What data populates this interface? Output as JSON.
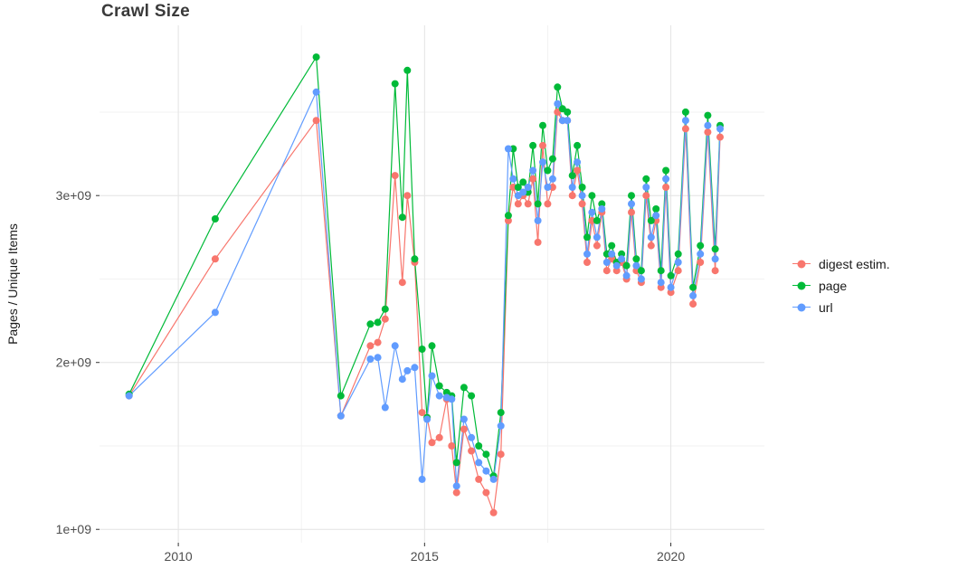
{
  "chart_data": {
    "type": "line",
    "title": "Crawl Size",
    "xlabel": "",
    "ylabel": "Pages / Unique Items",
    "y_units": "items (1 unit = 1e+09)",
    "xlim": [
      2008.4,
      2021.9
    ],
    "ylim": [
      0.92,
      4.02
    ],
    "grid": "on",
    "legend_position": "right",
    "x_ticks": [
      {
        "value": 2010,
        "label": "2010"
      },
      {
        "value": 2015,
        "label": "2015"
      },
      {
        "value": 2020,
        "label": "2020"
      }
    ],
    "x_minor_ticks": [
      2012.5,
      2017.5
    ],
    "y_ticks": [
      {
        "value": 1,
        "label": "1e+09"
      },
      {
        "value": 2,
        "label": "2e+09"
      },
      {
        "value": 3,
        "label": "3e+09"
      }
    ],
    "y_minor_ticks": [
      1.5,
      2.5,
      3.5
    ],
    "x": [
      2009.0,
      2010.75,
      2012.8,
      2013.3,
      2013.9,
      2014.05,
      2014.2,
      2014.4,
      2014.55,
      2014.65,
      2014.8,
      2014.95,
      2015.05,
      2015.15,
      2015.3,
      2015.45,
      2015.55,
      2015.65,
      2015.8,
      2015.95,
      2016.1,
      2016.25,
      2016.4,
      2016.55,
      2016.7,
      2016.8,
      2016.9,
      2017.0,
      2017.1,
      2017.2,
      2017.3,
      2017.4,
      2017.5,
      2017.6,
      2017.7,
      2017.8,
      2017.9,
      2018.0,
      2018.1,
      2018.2,
      2018.3,
      2018.4,
      2018.5,
      2018.6,
      2018.7,
      2018.8,
      2018.9,
      2019.0,
      2019.1,
      2019.2,
      2019.3,
      2019.4,
      2019.5,
      2019.6,
      2019.7,
      2019.8,
      2019.9,
      2020.0,
      2020.15,
      2020.3,
      2020.45,
      2020.6,
      2020.75,
      2020.9,
      2021.0
    ],
    "series": [
      {
        "name": "digest estim.",
        "color": "#F8766D",
        "values": [
          1.8,
          2.62,
          3.45,
          1.68,
          2.1,
          2.12,
          2.26,
          3.12,
          2.48,
          3.0,
          2.6,
          1.7,
          1.67,
          1.52,
          1.55,
          1.78,
          1.5,
          1.22,
          1.6,
          1.47,
          1.3,
          1.22,
          1.1,
          1.45,
          2.85,
          3.05,
          2.95,
          3.0,
          2.95,
          3.1,
          2.72,
          3.3,
          2.95,
          3.05,
          3.5,
          3.45,
          3.45,
          3.0,
          3.15,
          2.95,
          2.6,
          2.85,
          2.7,
          2.9,
          2.55,
          2.62,
          2.55,
          2.6,
          2.5,
          2.9,
          2.55,
          2.48,
          3.0,
          2.7,
          2.85,
          2.45,
          3.05,
          2.42,
          2.55,
          3.4,
          2.35,
          2.6,
          3.38,
          2.55,
          3.35
        ]
      },
      {
        "name": "page",
        "color": "#00BA38",
        "values": [
          1.81,
          2.86,
          3.83,
          1.8,
          2.23,
          2.24,
          2.32,
          3.67,
          2.87,
          3.75,
          2.62,
          2.08,
          1.67,
          2.1,
          1.86,
          1.82,
          1.8,
          1.4,
          1.85,
          1.8,
          1.5,
          1.45,
          1.32,
          1.7,
          2.88,
          3.28,
          3.05,
          3.08,
          3.02,
          3.3,
          2.95,
          3.42,
          3.15,
          3.22,
          3.65,
          3.52,
          3.5,
          3.12,
          3.3,
          3.05,
          2.75,
          3.0,
          2.85,
          2.95,
          2.65,
          2.7,
          2.6,
          2.65,
          2.58,
          3.0,
          2.62,
          2.55,
          3.1,
          2.85,
          2.92,
          2.55,
          3.15,
          2.52,
          2.65,
          3.5,
          2.45,
          2.7,
          3.48,
          2.68,
          3.42
        ]
      },
      {
        "name": "url",
        "color": "#619CFF",
        "values": [
          1.8,
          2.3,
          3.62,
          1.68,
          2.02,
          2.03,
          1.73,
          2.1,
          1.9,
          1.95,
          1.97,
          1.3,
          1.66,
          1.92,
          1.8,
          1.79,
          1.78,
          1.26,
          1.66,
          1.55,
          1.4,
          1.35,
          1.3,
          1.62,
          3.28,
          3.1,
          3.0,
          3.02,
          3.05,
          3.15,
          2.85,
          3.2,
          3.05,
          3.1,
          3.55,
          3.45,
          3.45,
          3.05,
          3.2,
          3.0,
          2.65,
          2.9,
          2.75,
          2.92,
          2.6,
          2.65,
          2.58,
          2.62,
          2.52,
          2.95,
          2.58,
          2.5,
          3.05,
          2.75,
          2.88,
          2.48,
          3.1,
          2.45,
          2.6,
          3.45,
          2.4,
          2.65,
          3.42,
          2.62,
          3.4
        ]
      }
    ]
  },
  "legend": {
    "items": [
      {
        "label": "digest estim."
      },
      {
        "label": "page"
      },
      {
        "label": "url"
      }
    ]
  }
}
